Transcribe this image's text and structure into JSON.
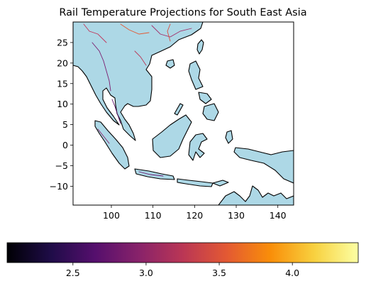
{
  "chart_data": {
    "type": "map",
    "title": "Rail Temperature Projections for South East Asia",
    "region": "South East Asia",
    "x_axis": {
      "min": 90.8,
      "max": 143.8,
      "ticks": [
        100,
        110,
        120,
        130,
        140
      ],
      "tick_labels": [
        "100",
        "110",
        "120",
        "130",
        "140"
      ]
    },
    "y_axis": {
      "min": -14.6,
      "max": 30.0,
      "ticks": [
        25,
        20,
        15,
        10,
        5,
        0,
        -5,
        -10
      ],
      "tick_labels": [
        "25",
        "20",
        "15",
        "10",
        "5",
        "0",
        "−5",
        "−10"
      ]
    },
    "colorbar": {
      "min": 2.05,
      "max": 4.45,
      "ticks": [
        2.5,
        3.0,
        3.5,
        4.0
      ],
      "tick_labels": [
        "2.5",
        "3.0",
        "3.5",
        "4.0"
      ],
      "colormap": "inferno",
      "stops": [
        "#000004",
        "#1f0c48",
        "#550f6d",
        "#88226a",
        "#ba3655",
        "#e35933",
        "#f98e09",
        "#f8d13f",
        "#fcffa4"
      ]
    },
    "colors": {
      "ocean": "#ffffff",
      "land": "#add8e6",
      "coast": "#000000"
    }
  }
}
